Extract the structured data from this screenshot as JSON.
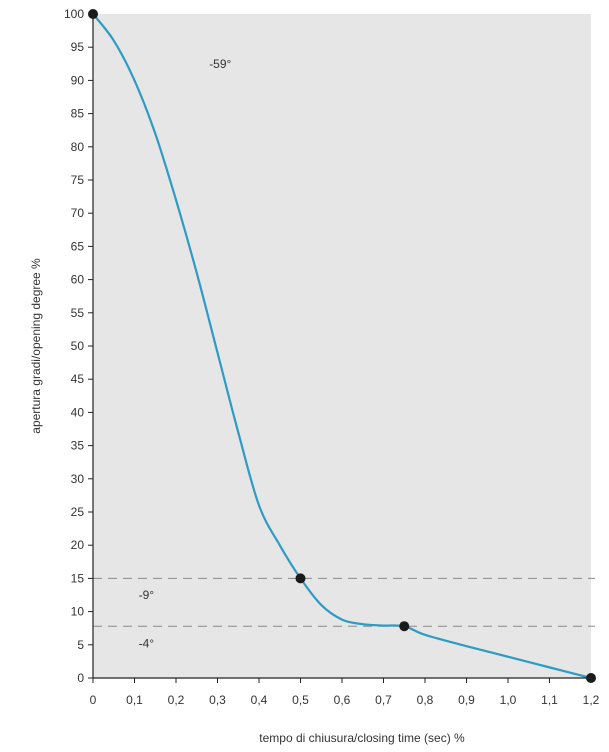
{
  "chart_data": {
    "type": "line",
    "title": "",
    "xlabel": "tempo di chiusura/closing time (sec) %",
    "ylabel": "apertura gradi/opening degree %",
    "xlim": [
      0,
      1.2
    ],
    "ylim": [
      0,
      100
    ],
    "x_ticks": [
      0,
      0.1,
      0.2,
      0.3,
      0.4,
      0.5,
      0.6,
      0.7,
      0.8,
      0.9,
      1.0,
      1.1,
      1.2
    ],
    "x_tick_labels": [
      "0",
      "0,1",
      "0,2",
      "0,3",
      "0,4",
      "0,5",
      "0,6",
      "0,7",
      "0,8",
      "0,9",
      "1,0",
      "1,1",
      "1,2"
    ],
    "y_ticks": [
      0,
      5,
      10,
      15,
      20,
      25,
      30,
      35,
      40,
      45,
      50,
      55,
      60,
      65,
      70,
      75,
      80,
      85,
      90,
      95,
      100
    ],
    "y_tick_labels": [
      "0",
      "5",
      "10",
      "15",
      "20",
      "25",
      "30",
      "35",
      "40",
      "45",
      "50",
      "55",
      "60",
      "65",
      "70",
      "75",
      "80",
      "85",
      "90",
      "95",
      "100"
    ],
    "grid": false,
    "legend": "none",
    "series": [
      {
        "color": "#2e9bc4",
        "x": [
          0,
          0.05,
          0.1,
          0.15,
          0.2,
          0.25,
          0.3,
          0.35,
          0.4,
          0.45,
          0.5,
          0.55,
          0.6,
          0.65,
          0.7,
          0.75,
          0.8,
          0.9,
          1.0,
          1.1,
          1.2
        ],
        "y": [
          100,
          96,
          90,
          82,
          72,
          61,
          49,
          37,
          26,
          20,
          15,
          11,
          8.8,
          8.1,
          7.9,
          7.8,
          6.5,
          4.8,
          3.2,
          1.6,
          0
        ]
      }
    ],
    "key_points": [
      {
        "x": 0,
        "y": 100
      },
      {
        "x": 0.5,
        "y": 15
      },
      {
        "x": 0.75,
        "y": 7.8
      },
      {
        "x": 1.2,
        "y": 0
      }
    ],
    "reference_lines": [
      {
        "y": 15,
        "style": "dashed"
      },
      {
        "y": 7.8,
        "style": "dashed"
      }
    ],
    "annotations": [
      {
        "text": "-59°",
        "x": 0.28,
        "y": 92.5
      },
      {
        "text": "-9°",
        "x": 0.11,
        "y": 12.5
      },
      {
        "text": "-4°",
        "x": 0.11,
        "y": 5.2
      }
    ],
    "colors": {
      "plot_background": "#e6e6e6",
      "curve": "#2e9bc4",
      "markers": "#1a1a1a",
      "dashed_lines": "#8a8a8a"
    }
  }
}
